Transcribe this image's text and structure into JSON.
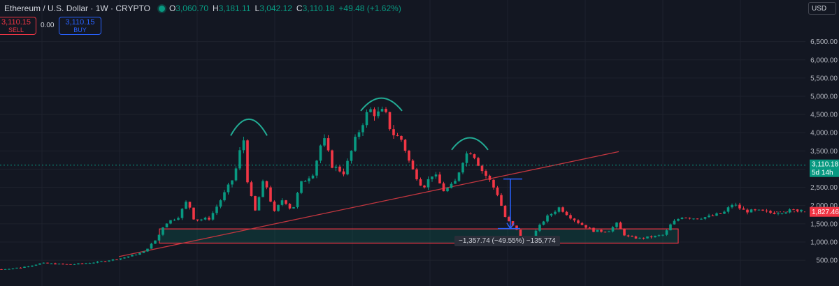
{
  "header": {
    "symbol": "Ethereum / U.S. Dollar · 1W · CRYPTO",
    "o_key": "O",
    "o_val": "3,060.70",
    "h_key": "H",
    "h_val": "3,181.11",
    "l_key": "L",
    "l_val": "3,042.12",
    "c_key": "C",
    "c_val": "3,110.18",
    "change": "+49.48 (+1.62%)"
  },
  "trade": {
    "sell_price": "3,110.15",
    "sell_label": "SELL",
    "spread": "0.00",
    "buy_price": "3,110.15",
    "buy_label": "BUY"
  },
  "currency": "USD",
  "measure": {
    "label": "−1,357.74 (−49.55%) −135,774"
  },
  "price_tags": {
    "current": "3,110.18",
    "countdown": "5d 14h",
    "level": "1,827.46"
  },
  "colors": {
    "up": "#089981",
    "down": "#f23645",
    "background": "#131722",
    "accent": "#2962ff"
  },
  "chart_data": {
    "type": "candlestick",
    "title": "Ethereum / U.S. Dollar · 1W · CRYPTO",
    "ylim": [
      0,
      7000
    ],
    "y_ticks": [
      "500.00",
      "1,000.00",
      "1,500.00",
      "2,000.00",
      "2,500.00",
      "3,000.00",
      "3,500.00",
      "4,000.00",
      "4,500.00",
      "5,000.00",
      "5,500.00",
      "6,000.00",
      "6,500.00"
    ],
    "y_tick_values": [
      500,
      1000,
      1500,
      2000,
      2500,
      3000,
      3500,
      4000,
      4500,
      5000,
      5500,
      6000,
      6500
    ],
    "grid": true,
    "keypoints": [
      [
        0,
        250
      ],
      [
        30,
        300
      ],
      [
        60,
        420
      ],
      [
        100,
        380
      ],
      [
        140,
        450
      ],
      [
        175,
        560
      ],
      [
        205,
        720
      ],
      [
        225,
        1100
      ],
      [
        235,
        1500
      ],
      [
        255,
        1700
      ],
      [
        268,
        2150
      ],
      [
        278,
        1600
      ],
      [
        300,
        1650
      ],
      [
        320,
        2300
      ],
      [
        335,
        2800
      ],
      [
        348,
        3900
      ],
      [
        355,
        2500
      ],
      [
        365,
        1850
      ],
      [
        378,
        2750
      ],
      [
        392,
        1800
      ],
      [
        405,
        2200
      ],
      [
        418,
        1850
      ],
      [
        430,
        2600
      ],
      [
        448,
        2900
      ],
      [
        462,
        3900
      ],
      [
        475,
        3100
      ],
      [
        492,
        2900
      ],
      [
        508,
        3800
      ],
      [
        518,
        4250
      ],
      [
        528,
        4650
      ],
      [
        538,
        4500
      ],
      [
        550,
        4600
      ],
      [
        560,
        4000
      ],
      [
        575,
        3800
      ],
      [
        588,
        3050
      ],
      [
        605,
        2500
      ],
      [
        620,
        2900
      ],
      [
        635,
        2400
      ],
      [
        650,
        2600
      ],
      [
        665,
        3400
      ],
      [
        675,
        3500
      ],
      [
        688,
        3000
      ],
      [
        700,
        2700
      ],
      [
        712,
        2300
      ],
      [
        722,
        1700
      ],
      [
        730,
        1500
      ],
      [
        738,
        1350
      ],
      [
        748,
        1050
      ],
      [
        762,
        1180
      ],
      [
        780,
        1650
      ],
      [
        800,
        1950
      ],
      [
        815,
        1700
      ],
      [
        830,
        1500
      ],
      [
        850,
        1300
      ],
      [
        870,
        1300
      ],
      [
        882,
        1500
      ],
      [
        895,
        1150
      ],
      [
        915,
        1100
      ],
      [
        935,
        1150
      ],
      [
        950,
        1200
      ],
      [
        960,
        1500
      ],
      [
        975,
        1700
      ],
      [
        995,
        1650
      ],
      [
        1015,
        1700
      ],
      [
        1035,
        1800
      ],
      [
        1048,
        2050
      ],
      [
        1065,
        1850
      ],
      [
        1085,
        1850
      ],
      [
        1105,
        1800
      ],
      [
        1125,
        1850
      ],
      [
        1150,
        1900
      ]
    ],
    "trendline": {
      "start": [
        170,
        600
      ],
      "end": [
        885,
        3480
      ]
    },
    "support_zone": {
      "x": [
        228,
        970
      ],
      "y": [
        970,
        1360
      ]
    },
    "arcs": [
      {
        "x": [
          330,
          382
        ],
        "y_base": 3920,
        "y_top": 4370
      },
      {
        "x": [
          516,
          575
        ],
        "y_base": 4600,
        "y_top": 4950
      },
      {
        "x": [
          646,
          698
        ],
        "y_base": 3530,
        "y_top": 3860
      }
    ],
    "measure_arrow": {
      "x": 730,
      "from": 2730,
      "to": 1370
    },
    "current_price": 3110.18,
    "level_price": 1827.46
  }
}
